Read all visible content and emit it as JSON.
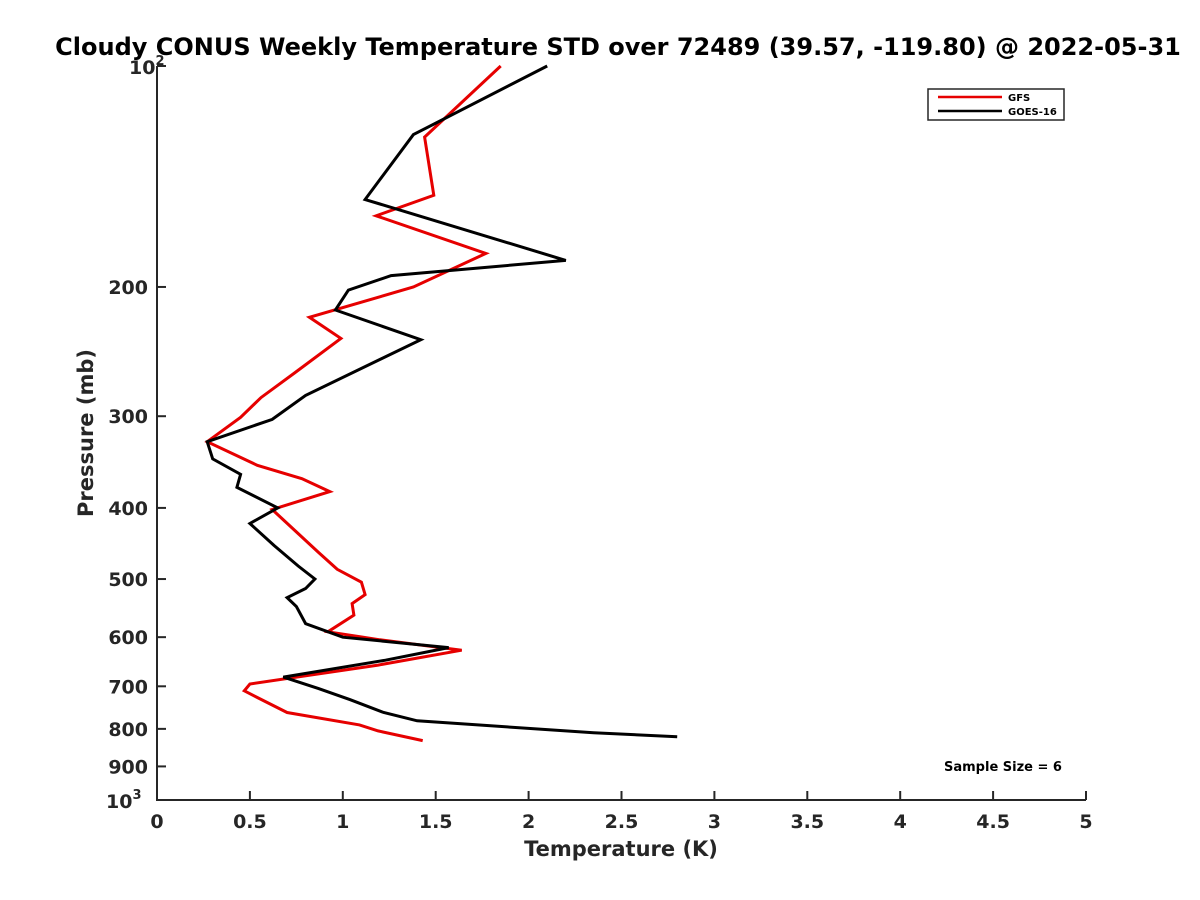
{
  "chart_data": {
    "type": "line",
    "title": "Cloudy CONUS Weekly Temperature STD over 72489 (39.57, -119.80) @ 2022-05-31",
    "xlabel": "Temperature (K)",
    "ylabel": "Pressure (mb)",
    "xlim": [
      0,
      5
    ],
    "ylim": [
      100,
      1000
    ],
    "y_scale": "log",
    "y_reversed": true,
    "grid": false,
    "legend_position": "top-right",
    "x_ticks": [
      "0",
      "0.5",
      "1",
      "1.5",
      "2",
      "2.5",
      "3",
      "3.5",
      "4",
      "4.5",
      "5"
    ],
    "y_tick_labels": [
      "200",
      "300",
      "400",
      "500",
      "600",
      "700",
      "800",
      "900"
    ],
    "y_power_labels": {
      "top_base": "10",
      "top_exp": "2",
      "bottom_base": "10",
      "bottom_exp": "3"
    },
    "series": [
      {
        "name": "GFS",
        "color": "#e60000",
        "points": [
          [
            1.85,
            100
          ],
          [
            1.44,
            125
          ],
          [
            1.49,
            150
          ],
          [
            1.18,
            160
          ],
          [
            1.77,
            180
          ],
          [
            1.38,
            200
          ],
          [
            0.82,
            220
          ],
          [
            0.99,
            235
          ],
          [
            0.74,
            262
          ],
          [
            0.56,
            283
          ],
          [
            0.45,
            301
          ],
          [
            0.27,
            325
          ],
          [
            0.54,
            350
          ],
          [
            0.78,
            365
          ],
          [
            0.93,
            380
          ],
          [
            0.62,
            402
          ],
          [
            0.87,
            460
          ],
          [
            0.97,
            485
          ],
          [
            1.1,
            505
          ],
          [
            1.12,
            525
          ],
          [
            1.05,
            540
          ],
          [
            1.06,
            560
          ],
          [
            0.92,
            590
          ],
          [
            1.2,
            605
          ],
          [
            1.64,
            625
          ],
          [
            1.19,
            655
          ],
          [
            0.5,
            695
          ],
          [
            0.47,
            710
          ],
          [
            0.54,
            725
          ],
          [
            0.7,
            760
          ],
          [
            1.09,
            790
          ],
          [
            1.19,
            805
          ],
          [
            1.43,
            830
          ]
        ]
      },
      {
        "name": "GOES-16",
        "color": "#000000",
        "points": [
          [
            2.1,
            100
          ],
          [
            1.38,
            124
          ],
          [
            1.12,
            152
          ],
          [
            2.2,
            184
          ],
          [
            1.26,
            193
          ],
          [
            1.03,
            202
          ],
          [
            0.96,
            215
          ],
          [
            1.42,
            236
          ],
          [
            0.8,
            281
          ],
          [
            0.62,
            303
          ],
          [
            0.27,
            325
          ],
          [
            0.3,
            343
          ],
          [
            0.45,
            360
          ],
          [
            0.43,
            375
          ],
          [
            0.65,
            400
          ],
          [
            0.5,
            420
          ],
          [
            0.63,
            450
          ],
          [
            0.76,
            480
          ],
          [
            0.85,
            500
          ],
          [
            0.8,
            515
          ],
          [
            0.7,
            530
          ],
          [
            0.75,
            545
          ],
          [
            0.8,
            575
          ],
          [
            1.0,
            600
          ],
          [
            1.57,
            620
          ],
          [
            1.23,
            645
          ],
          [
            0.68,
            680
          ],
          [
            0.87,
            705
          ],
          [
            1.04,
            730
          ],
          [
            1.22,
            760
          ],
          [
            1.4,
            780
          ],
          [
            2.35,
            810
          ],
          [
            2.8,
            820
          ]
        ]
      }
    ],
    "annotations": [
      "Sample Size = 6"
    ]
  }
}
